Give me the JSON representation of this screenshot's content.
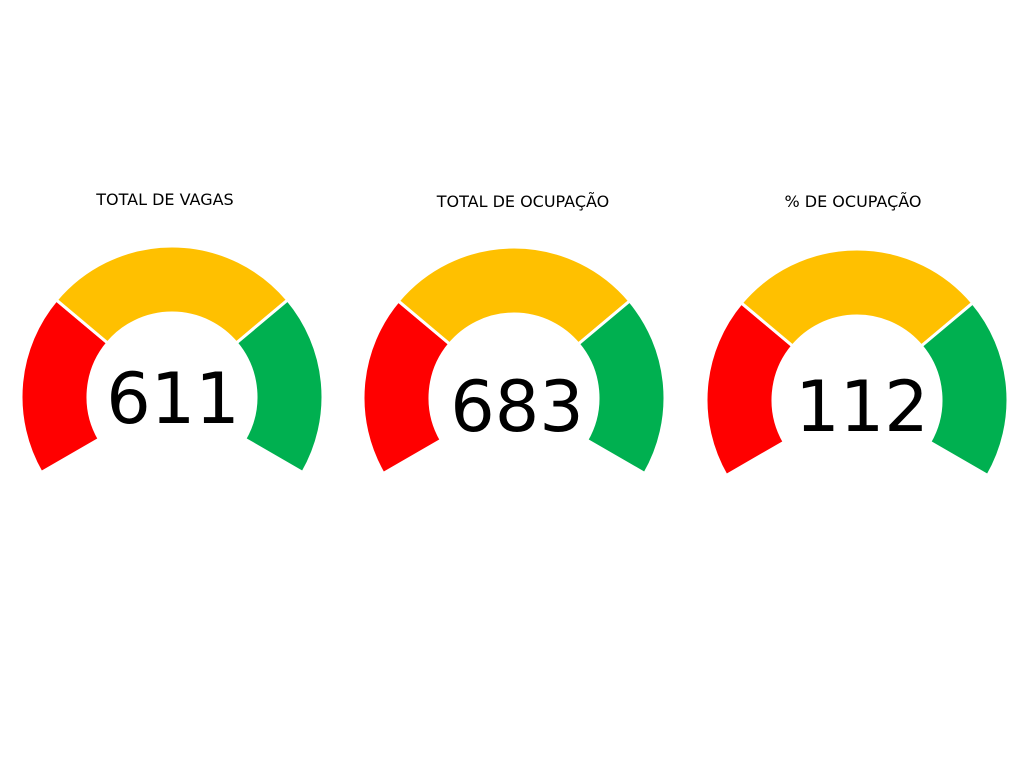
{
  "chart_data": [
    {
      "type": "gauge",
      "title": "TOTAL DE VAGAS",
      "value": "611",
      "bands": [
        {
          "color": "#FF0000"
        },
        {
          "color": "#FFC000"
        },
        {
          "color": "#00B050"
        }
      ]
    },
    {
      "type": "gauge",
      "title": "TOTAL DE OCUPAÇÃO",
      "value": "683",
      "bands": [
        {
          "color": "#FF0000"
        },
        {
          "color": "#FFC000"
        },
        {
          "color": "#00B050"
        }
      ]
    },
    {
      "type": "gauge",
      "title": "% DE OCUPAÇÃO",
      "value": "112",
      "bands": [
        {
          "color": "#FF0000"
        },
        {
          "color": "#FFC000"
        },
        {
          "color": "#00B050"
        }
      ]
    }
  ]
}
